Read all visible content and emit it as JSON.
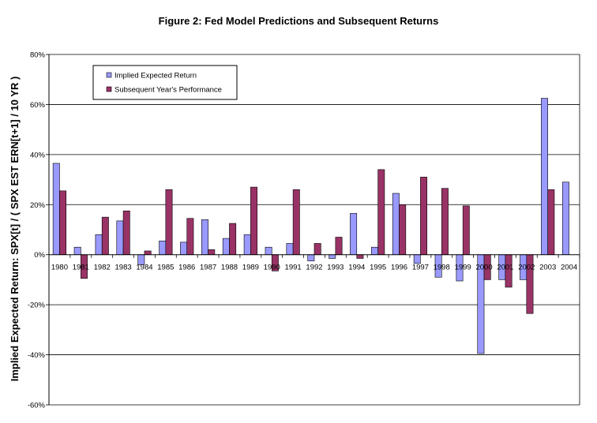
{
  "chart_data": {
    "type": "bar",
    "title": "Figure 2: Fed Model Predictions and Subsequent Returns",
    "ylabel": "Implied Expected Return:  SPX[t] / ( SPX EST ERN[t+1] / 10 YR )",
    "xlabel": "",
    "ylim": [
      -60,
      80
    ],
    "yticks": [
      -60,
      -40,
      -20,
      0,
      20,
      40,
      60,
      80
    ],
    "ytick_labels": [
      "-60%",
      "-40%",
      "-20%",
      "0%",
      "20%",
      "40%",
      "60%",
      "80%"
    ],
    "grid": true,
    "legend_position": "top-left",
    "categories": [
      "1980",
      "1981",
      "1982",
      "1983",
      "1984",
      "1985",
      "1986",
      "1987",
      "1988",
      "1989",
      "1990",
      "1991",
      "1992",
      "1993",
      "1994",
      "1995",
      "1996",
      "1997",
      "1998",
      "1999",
      "2000",
      "2001",
      "2002",
      "2003",
      "2004"
    ],
    "series": [
      {
        "name": "Implied Expected Return",
        "color": "#9999ff",
        "values": [
          36.5,
          3.0,
          8.0,
          13.5,
          -4.0,
          5.5,
          5.0,
          14.0,
          6.5,
          8.0,
          3.0,
          4.5,
          -2.5,
          -1.5,
          16.5,
          3.0,
          24.5,
          -3.5,
          -9.0,
          -10.5,
          -39.5,
          -10.0,
          -10.0,
          62.5,
          29.0
        ]
      },
      {
        "name": "Subsequent Year's Performance",
        "color": "#993366",
        "values": [
          25.5,
          -9.5,
          15.0,
          17.5,
          1.5,
          26.0,
          14.5,
          2.0,
          12.5,
          27.0,
          -6.5,
          26.0,
          4.5,
          7.0,
          -1.5,
          34.0,
          20.0,
          31.0,
          26.5,
          19.5,
          -10.0,
          -13.0,
          -23.5,
          26.0,
          null
        ]
      }
    ]
  }
}
